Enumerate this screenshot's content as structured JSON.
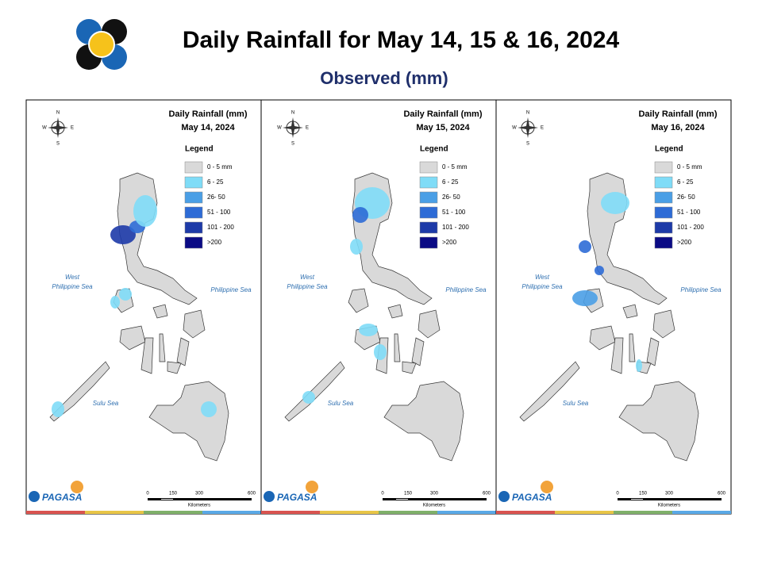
{
  "title": "Daily Rainfall for May 14, 15 & 16, 2024",
  "subtitle": "Observed (mm)",
  "heading": "Daily Rainfall (mm)",
  "legend_title": "Legend",
  "legend": [
    {
      "label": "0 - 5 mm",
      "color": "#d9d9d9"
    },
    {
      "label": "6 - 25",
      "color": "#7fdcf7"
    },
    {
      "label": "26- 50",
      "color": "#4a9fe6"
    },
    {
      "label": "51 - 100",
      "color": "#2d6bd6"
    },
    {
      "label": "101 - 200",
      "color": "#1d3aa8"
    },
    {
      "label": ">200",
      "color": "#0b0b85"
    }
  ],
  "seas": {
    "west": [
      "West",
      "Philippine Sea"
    ],
    "east": "Philippine Sea",
    "south": "Sulu Sea"
  },
  "compass": {
    "n": "N",
    "s": "S",
    "e": "E",
    "w": "W"
  },
  "scale": {
    "ticks": [
      "0",
      "150",
      "300",
      "600"
    ],
    "unit": "Kilometers"
  },
  "logo": "PAGASA",
  "panels": [
    {
      "date": "May 14, 2024"
    },
    {
      "date": "May 15, 2024"
    },
    {
      "date": "May 16, 2024"
    }
  ]
}
